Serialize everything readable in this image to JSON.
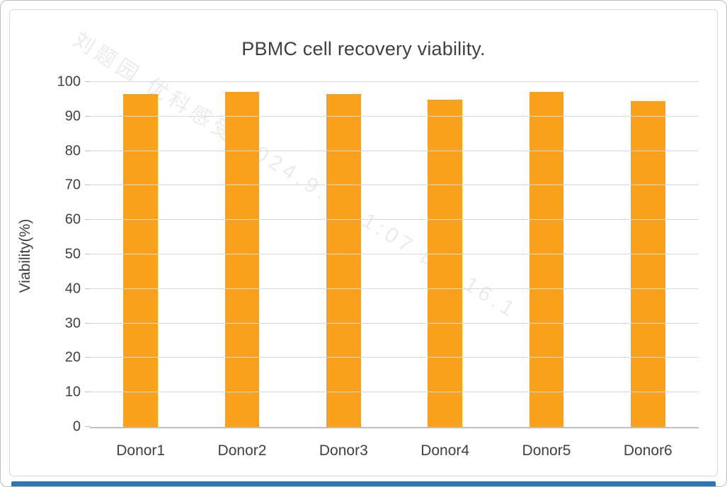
{
  "chart_data": {
    "type": "bar",
    "title": "PBMC cell recovery viability.",
    "categories": [
      "Donor1",
      "Donor2",
      "Donor3",
      "Donor4",
      "Donor5",
      "Donor6"
    ],
    "values": [
      96.6,
      97.2,
      96.5,
      94.8,
      97.2,
      94.4
    ],
    "xlabel": "",
    "ylabel": "Viability(%)",
    "ylim": [
      0,
      100
    ],
    "ytick_step": 10,
    "grid": "horizontal",
    "legend": "none"
  },
  "watermark": {
    "text": "刘题园 优科感受 2024.9.19 1:07 的9.16.1"
  },
  "colors": {
    "bar": "#F9A11B",
    "gridline": "#D9D9D9",
    "axis": "#BFBFBF",
    "tick_text": "#404040",
    "title_text": "#404040",
    "card_border": "#D8D8D8",
    "bottom_bar": "#2F76B5",
    "watermark": "rgba(130,130,130,0.16)"
  }
}
